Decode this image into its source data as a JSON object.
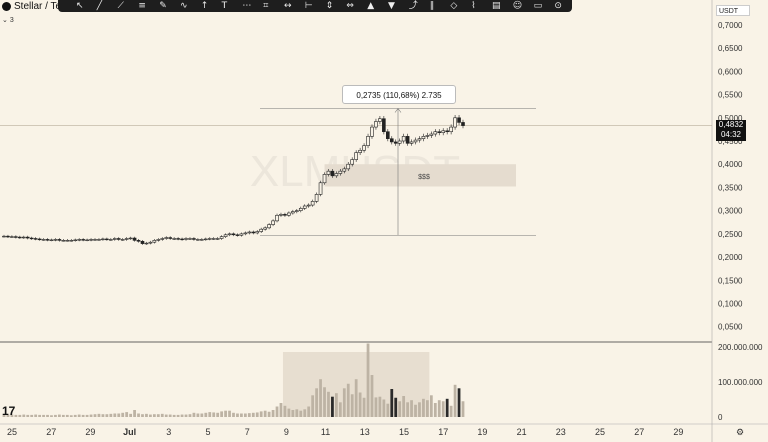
{
  "legend": {
    "name": "Stellar / Te",
    "interval": "3"
  },
  "watermark": "XLMUSDT",
  "unit": "USDT",
  "current_price": {
    "value": "0,4832",
    "countdown": "04:32"
  },
  "tooltip": "0,2735 (110,68%) 2.735",
  "box_label": "$$$",
  "tv_logo": "17",
  "settings_icon": "gear-icon",
  "toolbar_icons": [
    "cursor-icon",
    "line-icon",
    "trendline-icon",
    "channel-icon",
    "pen-icon",
    "brush-icon",
    "arrow-icon",
    "text-icon",
    "fib-icon",
    "pattern-icon",
    "measure-icon",
    "ruler-icon",
    "price-range-icon",
    "date-range-icon",
    "long-position-icon",
    "short-position-icon",
    "forecast-icon",
    "bars-pattern-icon",
    "projection-icon",
    "anchored-vwap-icon",
    "volume-profile-icon",
    "icon-icon",
    "note-icon",
    "magnet-icon"
  ],
  "chart_data": {
    "type": "candlestick",
    "price_axis": {
      "min": 0.03,
      "max": 0.73,
      "ticks": [
        "0,7000",
        "0,6500",
        "0,6000",
        "0,5500",
        "0,5000",
        "0,4500",
        "0,4000",
        "0,3500",
        "0,3000",
        "0,2500",
        "0,2000",
        "0,1500",
        "0,1000",
        "0,0500"
      ]
    },
    "volume_axis": {
      "min": 0,
      "max": 220000000,
      "ticks": [
        "200.000.000",
        "100.000.000",
        "0"
      ]
    },
    "x_labels": [
      "25",
      "27",
      "29",
      "Jul",
      "3",
      "5",
      "7",
      "9",
      "11",
      "13",
      "15",
      "17",
      "19",
      "21",
      "23",
      "25",
      "27",
      "29"
    ],
    "close": [
      0.245,
      0.244,
      0.244,
      0.243,
      0.242,
      0.243,
      0.241,
      0.24,
      0.239,
      0.238,
      0.238,
      0.237,
      0.237,
      0.238,
      0.236,
      0.236,
      0.236,
      0.236,
      0.237,
      0.238,
      0.237,
      0.237,
      0.238,
      0.238,
      0.238,
      0.239,
      0.238,
      0.238,
      0.24,
      0.238,
      0.238,
      0.24,
      0.241,
      0.236,
      0.234,
      0.229,
      0.23,
      0.232,
      0.236,
      0.238,
      0.24,
      0.242,
      0.24,
      0.24,
      0.239,
      0.238,
      0.24,
      0.24,
      0.238,
      0.238,
      0.238,
      0.239,
      0.24,
      0.24,
      0.24,
      0.244,
      0.248,
      0.25,
      0.248,
      0.247,
      0.25,
      0.252,
      0.254,
      0.252,
      0.255,
      0.26,
      0.263,
      0.27,
      0.278,
      0.29,
      0.292,
      0.29,
      0.295,
      0.298,
      0.3,
      0.305,
      0.31,
      0.312,
      0.32,
      0.335,
      0.36,
      0.378,
      0.385,
      0.375,
      0.38,
      0.385,
      0.39,
      0.4,
      0.41,
      0.425,
      0.43,
      0.44,
      0.46,
      0.48,
      0.492,
      0.498,
      0.47,
      0.455,
      0.448,
      0.445,
      0.45,
      0.46,
      0.445,
      0.448,
      0.452,
      0.455,
      0.46,
      0.462,
      0.465,
      0.47,
      0.468,
      0.472,
      0.47,
      0.48,
      0.5,
      0.49,
      0.4832
    ],
    "volume_millions": [
      8,
      7,
      7,
      6,
      6,
      7,
      6,
      6,
      7,
      6,
      6,
      6,
      5,
      6,
      7,
      6,
      6,
      5,
      6,
      7,
      6,
      6,
      7,
      8,
      9,
      8,
      8,
      9,
      10,
      10,
      12,
      14,
      9,
      20,
      10,
      8,
      9,
      7,
      8,
      8,
      9,
      7,
      7,
      6,
      6,
      7,
      7,
      8,
      12,
      10,
      10,
      12,
      14,
      13,
      12,
      16,
      18,
      18,
      12,
      10,
      10,
      10,
      11,
      12,
      13,
      16,
      18,
      15,
      20,
      30,
      40,
      32,
      24,
      20,
      22,
      18,
      22,
      30,
      62,
      82,
      108,
      85,
      72,
      58,
      68,
      42,
      82,
      95,
      65,
      108,
      70,
      55,
      210,
      120,
      56,
      58,
      50,
      38,
      80,
      55,
      45,
      60,
      42,
      48,
      35,
      42,
      52,
      48,
      62,
      40,
      48,
      45,
      52,
      32,
      92,
      82,
      45
    ]
  }
}
